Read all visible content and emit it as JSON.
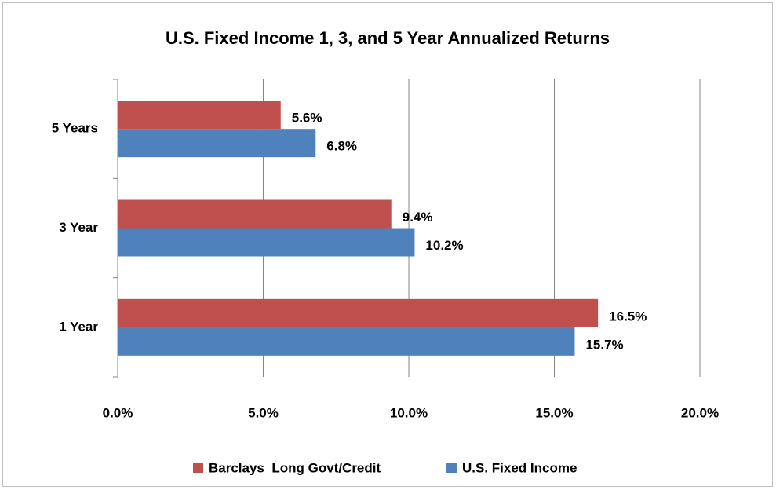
{
  "chart_data": {
    "type": "barh",
    "title": "U.S. Fixed Income 1, 3, and 5 Year Annualized Returns",
    "categories": [
      "5 Years",
      "3 Year",
      "1 Year"
    ],
    "series": [
      {
        "name": "Barclays  Long Govt/Credit",
        "color": "#c0504d",
        "values": [
          5.6,
          9.4,
          16.5
        ],
        "value_labels": [
          "5.6%",
          "9.4%",
          "16.5%"
        ]
      },
      {
        "name": "U.S. Fixed Income",
        "color": "#4f81bd",
        "values": [
          6.8,
          10.2,
          15.7
        ],
        "value_labels": [
          "6.8%",
          "10.2%",
          "15.7%"
        ]
      }
    ],
    "xlim": [
      0,
      20
    ],
    "xticks": [
      {
        "value": 0,
        "label": "0.0%"
      },
      {
        "value": 5,
        "label": "5.0%"
      },
      {
        "value": 10,
        "label": "10.0%"
      },
      {
        "value": 15,
        "label": "15.0%"
      },
      {
        "value": 20,
        "label": "20.0%"
      }
    ],
    "grid": true,
    "legend": "bottom"
  }
}
